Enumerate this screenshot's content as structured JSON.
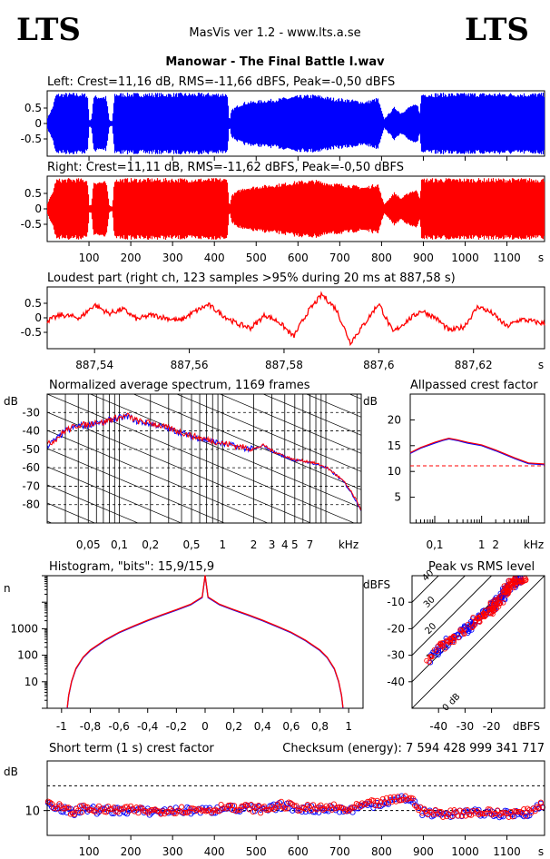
{
  "header": {
    "logo_left": "LTS",
    "logo_right": "LTS",
    "app_title": "MasVis ver 1.2 - www.lts.a.se",
    "track_title": "Manowar - The Final Battle I.wav"
  },
  "colors": {
    "left": "#0000ff",
    "right": "#ff0000",
    "axis": "#000000",
    "ref": "#ff0000"
  },
  "chart_data": [
    {
      "id": "left",
      "type": "area",
      "title": "Left: Crest=11,16 dB, RMS=-11,66 dBFS, Peak=-0,50 dBFS",
      "xlabel": "",
      "ylim": [
        -1,
        1
      ],
      "y_ticks": [
        "0.5",
        "0",
        "-0.5"
      ],
      "y_tick_values": [
        0.5,
        0,
        -0.5
      ],
      "x_ticks": [
        "100",
        "200",
        "300",
        "400",
        "500",
        "600",
        "700",
        "800",
        "900",
        "1000",
        "1100",
        "s"
      ],
      "x_tick_values": [
        100,
        200,
        300,
        400,
        500,
        600,
        700,
        800,
        900,
        1000,
        1100
      ],
      "xlim": [
        0,
        1190
      ],
      "envelope": {
        "x": [
          0,
          12,
          20,
          45,
          70,
          95,
          100,
          105,
          110,
          140,
          148,
          155,
          160,
          200,
          300,
          350,
          400,
          430,
          435,
          440,
          455,
          470,
          500,
          550,
          600,
          640,
          680,
          720,
          760,
          790,
          805,
          830,
          845,
          860,
          870,
          885,
          890,
          895,
          1000,
          1100,
          1190
        ],
        "amp": [
          0.2,
          0.55,
          0.98,
          1,
          1,
          0.98,
          0.1,
          0.15,
          0.92,
          0.9,
          0.1,
          0.08,
          1,
          1,
          1,
          1,
          1,
          1,
          0.05,
          0.45,
          0.6,
          0.7,
          0.75,
          0.82,
          0.92,
          0.95,
          0.85,
          0.8,
          0.72,
          0.85,
          0.15,
          0.55,
          0.35,
          0.5,
          0.6,
          0.62,
          0.35,
          1,
          1,
          1,
          1
        ]
      }
    },
    {
      "id": "right",
      "type": "area",
      "title": "Right: Crest=11,11 dB, RMS=-11,62 dBFS, Peak=-0,50 dBFS",
      "ylim": [
        -1,
        1
      ],
      "y_ticks": [
        "0.5",
        "0",
        "-0.5"
      ],
      "y_tick_values": [
        0.5,
        0,
        -0.5
      ],
      "x_ticks": [
        "100",
        "200",
        "300",
        "400",
        "500",
        "600",
        "700",
        "800",
        "900",
        "1000",
        "1100",
        "s"
      ],
      "x_tick_values": [
        100,
        200,
        300,
        400,
        500,
        600,
        700,
        800,
        900,
        1000,
        1100
      ],
      "xlim": [
        0,
        1190
      ],
      "envelope": {
        "x": [
          0,
          12,
          20,
          45,
          70,
          95,
          100,
          105,
          110,
          140,
          148,
          155,
          160,
          200,
          300,
          350,
          400,
          430,
          435,
          440,
          455,
          470,
          500,
          550,
          600,
          640,
          680,
          720,
          760,
          790,
          805,
          830,
          845,
          860,
          870,
          885,
          890,
          895,
          1000,
          1100,
          1190
        ],
        "amp": [
          0.2,
          0.55,
          0.98,
          1,
          1,
          0.98,
          0.1,
          0.15,
          0.92,
          0.9,
          0.1,
          0.08,
          1,
          1,
          1,
          1,
          1,
          1,
          0.05,
          0.45,
          0.6,
          0.7,
          0.75,
          0.82,
          0.92,
          0.95,
          0.85,
          0.8,
          0.72,
          0.85,
          0.15,
          0.55,
          0.35,
          0.5,
          0.6,
          0.62,
          0.35,
          1,
          1,
          1,
          1
        ]
      }
    },
    {
      "id": "loudest",
      "type": "line",
      "title": "Loudest part (right ch, 123 samples >95% during 20 ms at 887,58 s)",
      "ylim": [
        -1,
        1
      ],
      "y_ticks": [
        "0.5",
        "0",
        "-0.5"
      ],
      "y_tick_values": [
        0.5,
        0,
        -0.5
      ],
      "x_ticks": [
        "887,54",
        "887,56",
        "887,58",
        "887,6",
        "887,62",
        "s"
      ],
      "x_tick_values": [
        887.54,
        887.56,
        887.58,
        887.6,
        887.62
      ],
      "xlim": [
        887.53,
        887.635
      ],
      "x": [
        887.53,
        887.533,
        887.537,
        887.54,
        887.543,
        887.546,
        887.549,
        887.552,
        887.555,
        887.558,
        887.561,
        887.564,
        887.567,
        887.57,
        887.573,
        887.576,
        887.579,
        887.582,
        887.585,
        887.588,
        887.591,
        887.594,
        887.597,
        887.6,
        887.603,
        887.606,
        887.609,
        887.612,
        887.615,
        887.618,
        887.621,
        887.624,
        887.627,
        887.63,
        887.635
      ],
      "y": [
        -0.1,
        0.1,
        0.0,
        0.45,
        0.15,
        0.3,
        -0.05,
        0.1,
        0.0,
        -0.1,
        0.2,
        0.45,
        0.1,
        -0.2,
        -0.35,
        0.1,
        -0.15,
        -0.65,
        0.2,
        0.8,
        0.3,
        -0.85,
        -0.2,
        0.5,
        -0.5,
        -0.1,
        0.25,
        0.0,
        -0.45,
        -0.3,
        0.4,
        0.15,
        -0.3,
        -0.05,
        -0.2
      ]
    },
    {
      "id": "spectrum",
      "type": "line",
      "title": "Normalized average spectrum, 1169 frames",
      "ylabel": "dB",
      "xlabel": "kHz",
      "y_ticks": [
        "-30",
        "-40",
        "-50",
        "-60",
        "-70",
        "-80"
      ],
      "y_tick_values": [
        -30,
        -40,
        -50,
        -60,
        -70,
        -80
      ],
      "x_ticks": [
        "0,05",
        "0,1",
        "0,2",
        "0,5",
        "1",
        "2",
        "3",
        "4",
        "5",
        "7",
        "kHz"
      ],
      "x_tick_values": [
        0.05,
        0.1,
        0.2,
        0.5,
        1,
        2,
        3,
        4,
        5,
        7
      ],
      "xlim": [
        0.02,
        22
      ],
      "ylim": [
        -90,
        -20
      ],
      "x": [
        0.02,
        0.025,
        0.03,
        0.04,
        0.05,
        0.06,
        0.07,
        0.08,
        0.1,
        0.12,
        0.15,
        0.2,
        0.3,
        0.5,
        0.7,
        1,
        1.5,
        2,
        2.5,
        3,
        4,
        5,
        7,
        10,
        15,
        22
      ],
      "y": [
        -48,
        -44,
        -40,
        -37,
        -37,
        -35,
        -36,
        -34,
        -33,
        -32,
        -35,
        -36,
        -39,
        -43,
        -45,
        -47,
        -49,
        -50,
        -48,
        -51,
        -54,
        -56,
        -57,
        -60,
        -68,
        -83
      ],
      "series": [
        {
          "name": "",
          "color": "#0000ff"
        },
        {
          "name": "",
          "color": "#ff0000"
        }
      ]
    },
    {
      "id": "crest",
      "type": "line",
      "title": "Allpassed crest factor",
      "ylabel": "dB",
      "xlabel": "kHz",
      "y_ticks": [
        "20",
        "15",
        "10",
        "5"
      ],
      "y_tick_values": [
        20,
        15,
        10,
        5
      ],
      "x_ticks": [
        "0,1",
        "1",
        "2",
        "kHz"
      ],
      "x_tick_values": [
        0.1,
        1,
        2
      ],
      "xlim": [
        0.03,
        22
      ],
      "ylim": [
        0,
        25
      ],
      "x": [
        0.03,
        0.05,
        0.1,
        0.15,
        0.2,
        0.3,
        0.5,
        1,
        2,
        5,
        10,
        22
      ],
      "y": [
        13.5,
        14.5,
        15.5,
        16,
        16.3,
        16,
        15.5,
        15,
        14,
        12.5,
        11.5,
        11.3
      ],
      "reference_line": 11.1
    },
    {
      "id": "histogram",
      "type": "line",
      "title": "Histogram, \"bits\": 15,9/15,9",
      "ylabel": "n",
      "y_ticks": [
        "1000",
        "100",
        "10"
      ],
      "y_tick_values": [
        1000,
        100,
        10
      ],
      "x_ticks": [
        "-1",
        "-0,8",
        "-0,6",
        "-0,4",
        "-0,2",
        "0",
        "0,2",
        "0,4",
        "0,6",
        "0,8",
        "1"
      ],
      "x_tick_values": [
        -1,
        -0.8,
        -0.6,
        -0.4,
        -0.2,
        0,
        0.2,
        0.4,
        0.6,
        0.8,
        1
      ],
      "xlim": [
        -1.1,
        1.1
      ],
      "ylim": [
        1,
        100000
      ],
      "x": [
        -0.96,
        -0.95,
        -0.93,
        -0.9,
        -0.85,
        -0.8,
        -0.7,
        -0.6,
        -0.5,
        -0.4,
        -0.3,
        -0.2,
        -0.1,
        -0.02,
        0,
        0.02,
        0.1,
        0.2,
        0.3,
        0.4,
        0.5,
        0.6,
        0.7,
        0.8,
        0.85,
        0.9,
        0.93,
        0.95,
        0.96
      ],
      "y": [
        1,
        3,
        10,
        30,
        80,
        150,
        350,
        700,
        1200,
        2000,
        3200,
        5000,
        8000,
        15000,
        100000,
        15000,
        8000,
        5000,
        3200,
        2000,
        1200,
        700,
        350,
        150,
        80,
        30,
        10,
        3,
        1
      ]
    },
    {
      "id": "peak_vs_rms",
      "type": "scatter",
      "title": "Peak vs RMS level",
      "ylabel": "dBFS",
      "xlabel": "dBFS",
      "y_ticks": [
        "-10",
        "-20",
        "-30",
        "-40"
      ],
      "y_tick_values": [
        -10,
        -20,
        -30,
        -40
      ],
      "x_ticks": [
        "-40",
        "-30",
        "-20",
        "dBFS"
      ],
      "x_tick_values": [
        -40,
        -30,
        -20
      ],
      "xlim": [
        -50,
        0
      ],
      "ylim": [
        -50,
        0
      ],
      "diagonal_labels": [
        "40",
        "30",
        "20",
        "10",
        "0 dB"
      ],
      "x": [
        -44,
        -40,
        -38,
        -35,
        -32,
        -30,
        -28,
        -26,
        -24,
        -22,
        -20,
        -19,
        -18,
        -17,
        -16,
        -15,
        -14,
        -13,
        -12,
        -11,
        -10,
        -9,
        -8
      ],
      "y": [
        -32,
        -28,
        -26,
        -24,
        -22,
        -20,
        -19,
        -17,
        -16,
        -14,
        -13,
        -11,
        -10,
        -9,
        -8,
        -6,
        -5,
        -4,
        -3,
        -2.5,
        -2,
        -1.5,
        -1
      ]
    },
    {
      "id": "short_term_crest",
      "type": "scatter",
      "title": "Short term (1 s) crest factor",
      "checksum": "Checksum (energy):  7 594 428 999 341 717",
      "ylabel": "dB",
      "y_ticks": [
        "10"
      ],
      "y_tick_values": [
        10
      ],
      "x_ticks": [
        "100",
        "200",
        "300",
        "400",
        "500",
        "600",
        "700",
        "800",
        "900",
        "1000",
        "1100",
        "s"
      ],
      "x_tick_values": [
        100,
        200,
        300,
        400,
        500,
        600,
        700,
        800,
        900,
        1000,
        1100
      ],
      "xlim": [
        0,
        1190
      ],
      "ylim": [
        0,
        30
      ],
      "reference_levels": [
        20,
        10
      ],
      "x": [
        5,
        30,
        60,
        90,
        120,
        150,
        200,
        250,
        300,
        350,
        400,
        430,
        450,
        480,
        520,
        560,
        600,
        640,
        680,
        720,
        760,
        800,
        830,
        860,
        880,
        900,
        950,
        1000,
        1050,
        1100,
        1150,
        1180
      ],
      "y": [
        13,
        11,
        9,
        11,
        10,
        10,
        10,
        9.5,
        10,
        10,
        10,
        12,
        10,
        11,
        10,
        12,
        11,
        10.5,
        11,
        10,
        12,
        13,
        14,
        15,
        13,
        9,
        8.5,
        9,
        9,
        8.5,
        9,
        12
      ]
    }
  ]
}
